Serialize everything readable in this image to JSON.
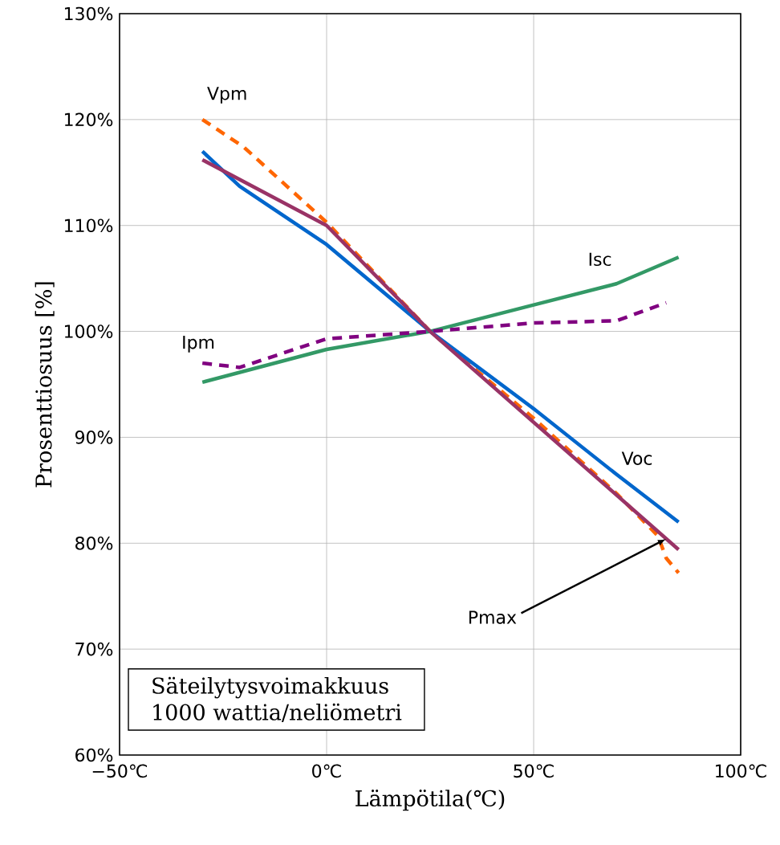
{
  "chart_data": {
    "type": "line",
    "xlabel": "Lämpötila(℃)",
    "ylabel": "Prosenttiosuus [%]",
    "xlim": [
      -50,
      100
    ],
    "ylim": [
      60,
      130
    ],
    "xticks": [
      {
        "value": -50,
        "label": "−50℃"
      },
      {
        "value": 0,
        "label": "0℃"
      },
      {
        "value": 50,
        "label": "50℃"
      },
      {
        "value": 100,
        "label": "100℃"
      }
    ],
    "yticks": [
      {
        "value": 60,
        "label": "60%"
      },
      {
        "value": 70,
        "label": "70%"
      },
      {
        "value": 80,
        "label": "80%"
      },
      {
        "value": 90,
        "label": "90%"
      },
      {
        "value": 100,
        "label": "100%"
      },
      {
        "value": 110,
        "label": "110%"
      },
      {
        "value": 120,
        "label": "120%"
      },
      {
        "value": 130,
        "label": "130%"
      }
    ],
    "grid": true,
    "series": [
      {
        "name": "Vpm",
        "color": "#ff6600",
        "line_style": "dashed",
        "x": [
          -30,
          -20,
          0,
          25,
          50,
          70,
          75,
          80,
          82,
          85
        ],
        "values": [
          120,
          117.4,
          110.3,
          100,
          91.8,
          84.7,
          82.7,
          80.7,
          78.6,
          77.2
        ]
      },
      {
        "name": "Isc",
        "color": "#339966",
        "line_style": "solid",
        "x": [
          -30,
          0,
          25,
          50,
          70,
          85
        ],
        "values": [
          95.2,
          98.3,
          100,
          102.5,
          104.5,
          107
        ]
      },
      {
        "name": "Ipm",
        "color": "#800080",
        "line_style": "dashed",
        "x": [
          -30,
          -21,
          0,
          25,
          50,
          70,
          82
        ],
        "values": [
          97,
          96.6,
          99.3,
          100,
          100.8,
          101,
          102.7
        ]
      },
      {
        "name": "Voc",
        "color": "#0066cc",
        "line_style": "solid",
        "x": [
          -30,
          -21,
          0,
          25,
          50,
          70,
          85
        ],
        "values": [
          117,
          113.7,
          108.2,
          100,
          92.7,
          86.5,
          82
        ]
      },
      {
        "name": "Pmax",
        "color": "#993366",
        "line_style": "solid",
        "x": [
          -30,
          0,
          25,
          85
        ],
        "values": [
          116.2,
          110,
          100,
          79.4
        ]
      }
    ],
    "annotations": [
      "Säteilytysvoimakkuus",
      "1000 wattia/neliömetri"
    ]
  }
}
